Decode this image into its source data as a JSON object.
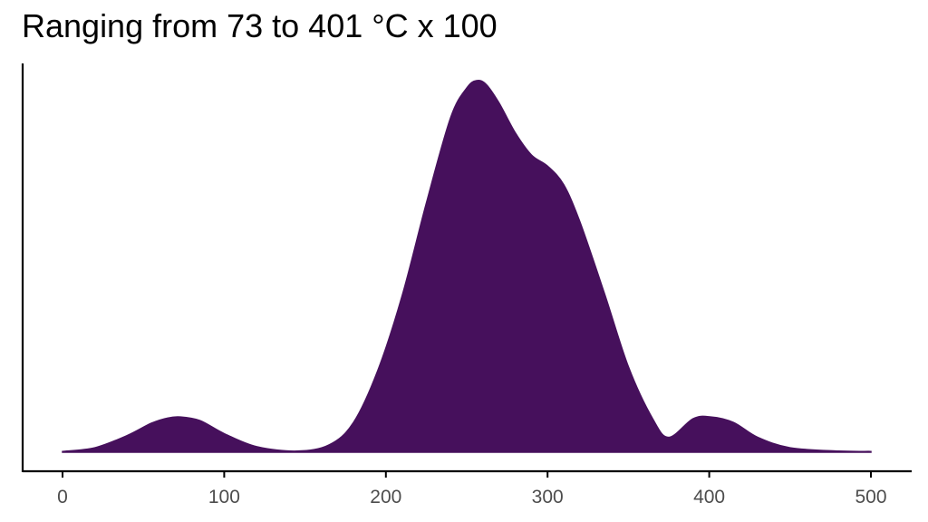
{
  "chart_data": {
    "type": "area",
    "title": "Ranging from 73 to 401 °C x 100",
    "xlabel": "",
    "ylabel": "",
    "xlim": [
      0,
      500
    ],
    "ylim": [
      0,
      1
    ],
    "x_ticks": [
      0,
      100,
      200,
      300,
      400,
      500
    ],
    "x_tick_labels": [
      "0",
      "100",
      "200",
      "300",
      "400",
      "500"
    ],
    "grid": false,
    "legend": "none",
    "fill_color": "#46105c",
    "series": [
      {
        "x": [
          0,
          20,
          40,
          55,
          65,
          73,
          85,
          100,
          120,
          145,
          165,
          180,
          195,
          210,
          225,
          240,
          250,
          256,
          262,
          270,
          280,
          290,
          300,
          310,
          320,
          335,
          350,
          365,
          375,
          390,
          401,
          415,
          430,
          450,
          480,
          500
        ],
        "y": [
          0.002,
          0.012,
          0.045,
          0.078,
          0.092,
          0.095,
          0.085,
          0.05,
          0.015,
          0.003,
          0.02,
          0.08,
          0.22,
          0.42,
          0.67,
          0.9,
          0.98,
          1.0,
          0.99,
          0.94,
          0.86,
          0.8,
          0.77,
          0.72,
          0.62,
          0.43,
          0.23,
          0.09,
          0.04,
          0.09,
          0.095,
          0.08,
          0.04,
          0.012,
          0.003,
          0.002
        ]
      }
    ]
  }
}
